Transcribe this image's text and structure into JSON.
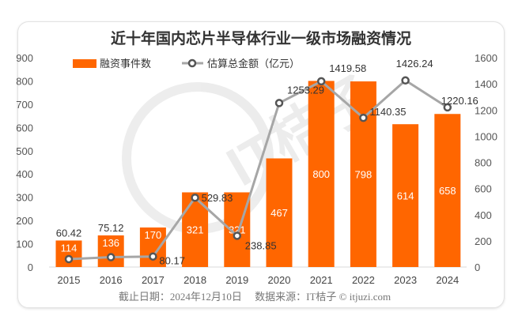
{
  "chart_data": {
    "type": "bar",
    "title": "近十年国内芯片半导体行业一级市场融资情况",
    "categories": [
      "2015",
      "2016",
      "2017",
      "2018",
      "2019",
      "2020",
      "2021",
      "2022",
      "2023",
      "2024"
    ],
    "series": [
      {
        "name": "融资事件数",
        "type": "bar",
        "axis": "left",
        "color": "#ff6600",
        "values": [
          114,
          136,
          170,
          321,
          321,
          467,
          800,
          798,
          614,
          658
        ]
      },
      {
        "name": "估算总金额（亿元）",
        "type": "line",
        "axis": "right",
        "color": "#a6a6a6",
        "values": [
          60.42,
          75.12,
          80.17,
          529.83,
          238.85,
          1253.29,
          1419.58,
          1140.35,
          1426.24,
          1220.16
        ]
      }
    ],
    "left_axis": {
      "ylim": [
        0,
        900
      ],
      "ticks": [
        "0",
        "100",
        "200",
        "300",
        "400",
        "500",
        "600",
        "700",
        "800",
        "900"
      ]
    },
    "right_axis": {
      "ylim": [
        0,
        1600
      ],
      "ticks": [
        "0",
        "200",
        "400",
        "600",
        "800",
        "1000",
        "1200",
        "1400",
        "1600"
      ]
    },
    "legend": "top-left",
    "grid": false
  },
  "footer": "截止日期：2024年12月10日　 数据来源：IT桔子 © itjuzi.com",
  "watermark": "IT桔子"
}
